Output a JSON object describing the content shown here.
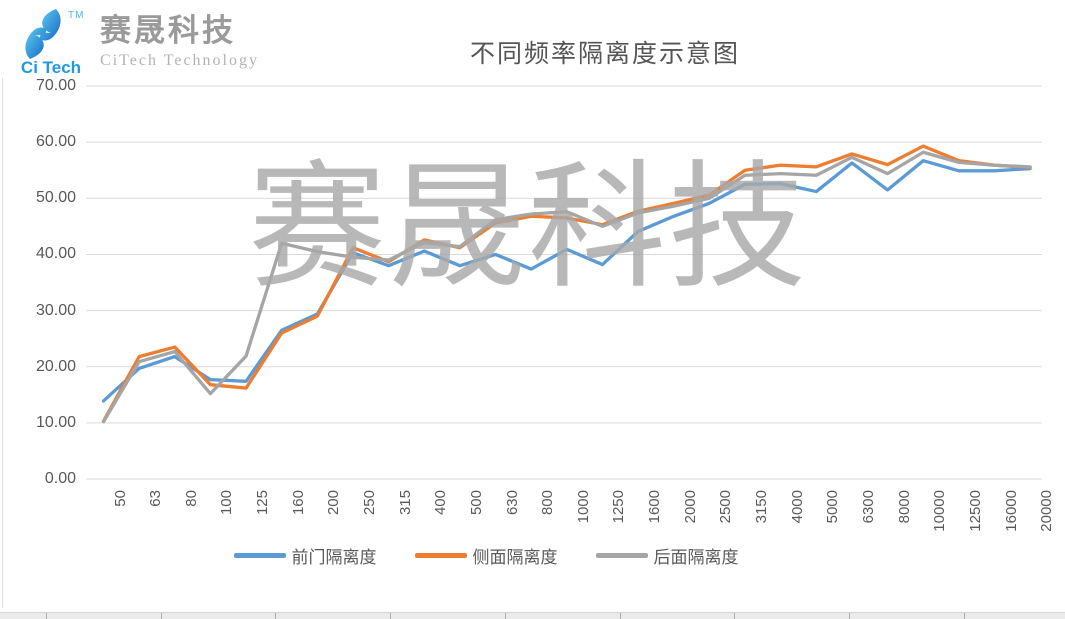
{
  "header": {
    "logo": {
      "icon": "citech-swoosh-logo",
      "trademark": "TM",
      "short_name": "Ci Tech",
      "company_cn": "赛晟科技",
      "company_en": "CiTech Technology"
    },
    "title": "不同频率隔离度示意图"
  },
  "watermark": {
    "text": "赛晟科技"
  },
  "chart_data": {
    "type": "line",
    "title": "不同频率隔离度示意图",
    "xlabel": "",
    "ylabel": "",
    "ylim": [
      0,
      70
    ],
    "ytick_step": 10,
    "ytick_decimals": 2,
    "grid": true,
    "legend_position": "bottom",
    "categories": [
      50,
      63,
      80,
      100,
      125,
      160,
      200,
      250,
      315,
      400,
      500,
      630,
      800,
      1000,
      1250,
      1600,
      2000,
      2500,
      3150,
      4000,
      5000,
      6300,
      8000,
      10000,
      12500,
      16000,
      20000
    ],
    "series": [
      {
        "name": "前门隔离度",
        "color": "#5B9BD5",
        "values": [
          13.9,
          19.7,
          21.8,
          17.7,
          17.4,
          26.5,
          29.4,
          40.3,
          38.0,
          40.6,
          38.0,
          40.0,
          37.4,
          40.9,
          38.2,
          44.1,
          46.8,
          49.1,
          52.5,
          52.6,
          51.2,
          56.3,
          51.5,
          56.7,
          54.9,
          54.9,
          55.3
        ]
      },
      {
        "name": "侧面隔离度",
        "color": "#ED7D31",
        "values": [
          10.3,
          21.8,
          23.5,
          16.8,
          16.2,
          26.0,
          29.0,
          41.2,
          38.7,
          42.6,
          41.2,
          45.6,
          46.8,
          46.5,
          45.3,
          47.7,
          49.1,
          50.6,
          55.0,
          55.9,
          55.6,
          57.9,
          56.0,
          59.3,
          56.7,
          55.9,
          55.5
        ]
      },
      {
        "name": "后面隔离度",
        "color": "#A5A5A5",
        "values": [
          10.2,
          20.9,
          22.7,
          15.2,
          21.9,
          42.0,
          40.5,
          39.5,
          39.0,
          42.1,
          41.4,
          46.2,
          47.2,
          47.6,
          45.0,
          47.4,
          48.6,
          50.0,
          54.1,
          54.4,
          54.1,
          57.3,
          54.4,
          58.2,
          56.4,
          55.9,
          55.6
        ]
      }
    ]
  },
  "colors": {
    "gridline": "#d9d9d9",
    "axis_text": "#595959",
    "title_text": "#555555",
    "watermark": "#a9a9a9",
    "logo_blue": "#1e9ae0"
  }
}
